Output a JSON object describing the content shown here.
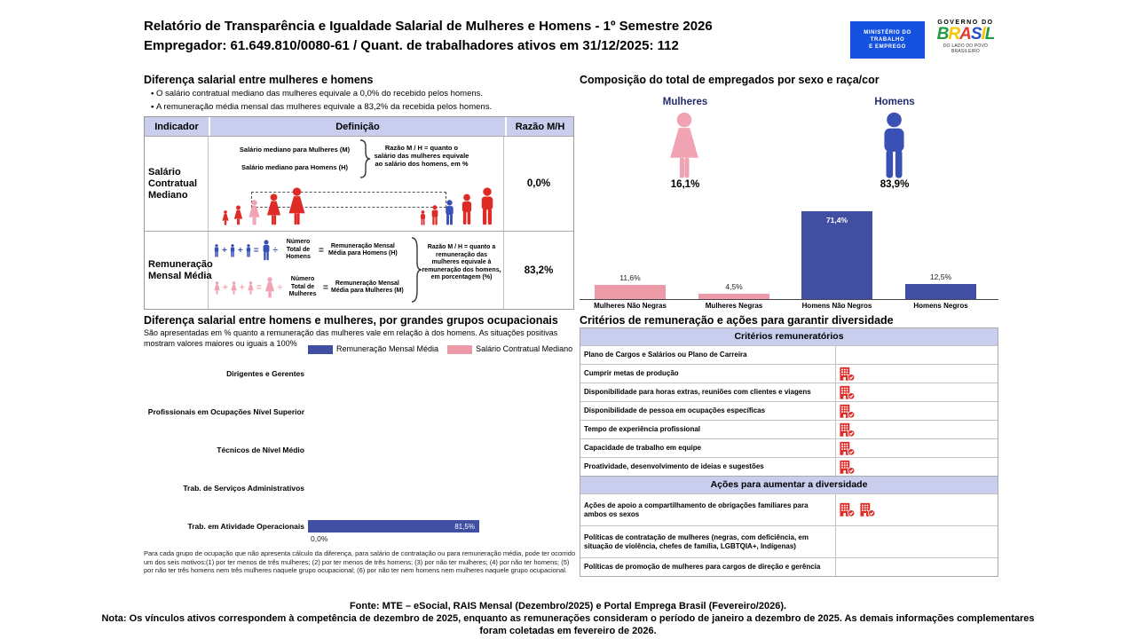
{
  "colors": {
    "blue": "#414FA3",
    "pink": "#EC9AA8",
    "red": "#DF2B26",
    "icon_blue": "#3950B4",
    "icon_pink": "#F0A3B2",
    "lavender": "#C9CDEE",
    "navy": "#252B6E",
    "mte_blue": "#1552E0"
  },
  "header": {
    "title_line1": "Relatório de Transparência e Igualdade Salarial de Mulheres e Homens - 1º Semestre 2026",
    "title_line2": "Empregador: 61.649.810/0080-61 / Quant. de trabalhadores ativos em 31/12/2025: 112",
    "mte_logo_lines": [
      "MINISTÉRIO DO",
      "TRABALHO",
      "E EMPREGO"
    ],
    "gov_top": "GOVERNO DO",
    "gov_name": "BRASIL",
    "gov_sub": "DO LADO DO POVO BRASILEIRO",
    "brasil_letter_colors": [
      "#1f9c44",
      "#f6c700",
      "#e23b30",
      "#2a50c8",
      "#f6c700",
      "#1f9c44"
    ]
  },
  "left": {
    "section1": {
      "title": "Diferença salarial entre mulheres e homens",
      "bullets": [
        "O salário contratual mediano das mulheres equivale a 0,0% do recebido pelos homens.",
        "A remuneração média mensal das mulheres equivale a 83,2% da recebida pelos homens."
      ]
    },
    "table": {
      "headers": [
        "Indicador",
        "Definição",
        "Razão M/H"
      ],
      "row1": {
        "indicator": "Salário Contratual Mediano",
        "line1": "Salário mediano para Mulheres (M)",
        "line2": "Salário mediano para Homens (H)",
        "explain": "Razão M / H = quanto o salário das mulheres equivale ao salário dos homens, em %",
        "ratio": "0,0%"
      },
      "row2": {
        "indicator": "Remuneração Mensal Média",
        "men_divisor": "Número Total de Homens",
        "men_result": "Remuneração Mensal Média para Homens (H)",
        "women_divisor": "Número Total de Mulheres",
        "women_result": "Remuneração Mensal Média para Mulheres (M)",
        "explain": "Razão M / H = quanto a remuneração das mulheres equivale à remuneração dos homens, em porcentagem (%)",
        "ratio": "83,2%"
      }
    },
    "section2": {
      "title": "Diferença salarial entre homens e mulheres, por grandes grupos ocupacionais",
      "subtitle": "São apresentadas em % quanto a remuneração das mulheres vale em relação à dos homens. As situações positivas mostram valores maiores ou iguais a 100%",
      "legend": [
        {
          "label": "Remuneração Mensal Média",
          "color": "#414FA3"
        },
        {
          "label": "Salário Contratual Mediano",
          "color": "#EC9AA8"
        }
      ]
    },
    "footnote": "Para cada grupo de ocupação que não apresenta cálculo da diferença, para salário de contratação ou para remuneração média, pode ter ocorrido um dos seis motivos:(1) por ter menos de três mulheres; (2) por ter menos de três homens; (3) por não ter mulheres; (4) por não ter homens; (5) por não ter três homens nem três mulheres naquele grupo ocupacional; (6) por não ter nem homens nem mulheres naquele grupo ocupacional."
  },
  "right": {
    "comp_title": "Composição do total de empregados por sexo e raça/cor",
    "female_label": "Mulheres",
    "male_label": "Homens",
    "female_pct": "16,1%",
    "male_pct": "83,9%",
    "crit_title": "Critérios de remuneração e ações para garantir diversidade",
    "crit_sections": [
      {
        "header": "Critérios remuneratórios",
        "rows": [
          {
            "label": "Plano de Cargos e Salários ou Plano de Carreira",
            "icons": 0
          },
          {
            "label": "Cumprir metas de produção",
            "icons": 1
          },
          {
            "label": "Disponibilidade para horas extras, reuniões com clientes e viagens",
            "icons": 1
          },
          {
            "label": "Disponibilidade de pessoa em ocupações específicas",
            "icons": 1
          },
          {
            "label": "Tempo de experiência profissional",
            "icons": 1
          },
          {
            "label": "Capacidade de trabalho em equipe",
            "icons": 1
          },
          {
            "label": "Proatividade, desenvolvimento de ideias e sugestões",
            "icons": 1
          }
        ]
      },
      {
        "header": "Ações para aumentar a diversidade",
        "rows": [
          {
            "label": "Ações de apoio a compartilhamento de obrigações familiares para ambos os sexos",
            "icons": 2
          },
          {
            "label": "Políticas de contratação de mulheres (negras, com deficiência, em situação de violência, chefes de família, LGBTQIA+, Indígenas)",
            "icons": 0
          },
          {
            "label": "Políticas de promoção de mulheres para cargos de direção e gerência",
            "icons": 0
          }
        ]
      }
    ]
  },
  "chart_data": [
    {
      "type": "bar",
      "title": "Composição do total de empregados por sexo e raça/cor",
      "categories": [
        "Mulheres Não Negras",
        "Mulheres Negras",
        "Homens Não Negros",
        "Homens Negros"
      ],
      "values": [
        11.6,
        4.5,
        71.4,
        12.5
      ],
      "value_labels": [
        "11,6%",
        "4,5%",
        "71,4%",
        "12,5%"
      ],
      "bar_colors": [
        "#EC9AA8",
        "#EC9AA8",
        "#414FA3",
        "#414FA3"
      ],
      "ylim": [
        0,
        80
      ],
      "grid": false,
      "summary": {
        "Mulheres": "16,1%",
        "Homens": "83,9%"
      }
    },
    {
      "type": "bar",
      "orientation": "horizontal",
      "title": "Diferença salarial entre homens e mulheres, por grandes grupos ocupacionais",
      "categories": [
        "Dirigentes e Gerentes",
        "Profissionais em Ocupações Nível Superior",
        "Técnicos de Nível Médio",
        "Trab. de Serviços Administrativos",
        "Trab. em Atividade Operacionais"
      ],
      "series": [
        {
          "name": "Remuneração Mensal Média",
          "color": "#414FA3",
          "values": [
            null,
            null,
            null,
            null,
            81.5
          ]
        },
        {
          "name": "Salário Contratual Mediano",
          "color": "#EC9AA8",
          "values": [
            null,
            null,
            null,
            null,
            0.0
          ]
        }
      ],
      "bar_value_label": "81,5%",
      "zero_value_label": "0,0%",
      "xlim": [
        0,
        100
      ],
      "legend_position": "top"
    }
  ],
  "footer": {
    "fonte": "Fonte: MTE – eSocial, RAIS Mensal (Dezembro/2025) e Portal Emprega Brasil (Fevereiro/2026).",
    "nota": "Nota: Os vínculos ativos correspondem à competência de dezembro de 2025, enquanto as remunerações consideram o período de janeiro a dezembro de 2025. As demais informações complementares foram coletadas em fevereiro de 2026."
  }
}
